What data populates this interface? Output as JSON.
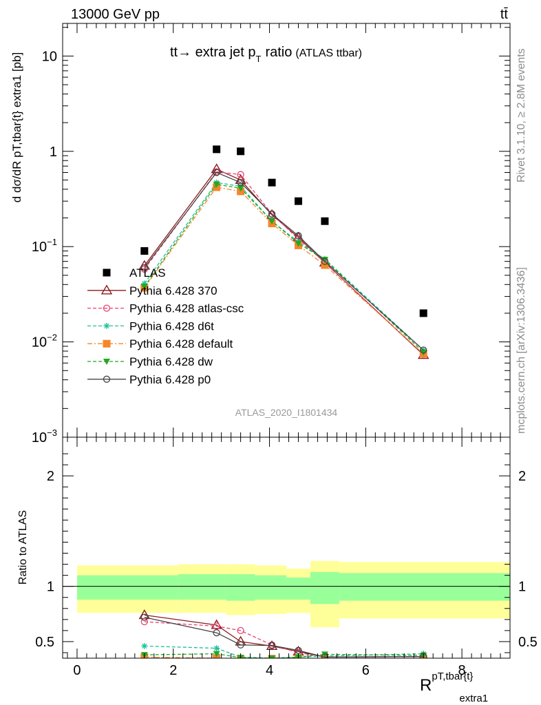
{
  "header": {
    "left": "13000 GeV pp",
    "right": "tt̄"
  },
  "side_labels": {
    "rivet": "Rivet 3.1.10, ≥ 2.8M events",
    "mcplots": "mcplots.cern.ch [arXiv:1306.3436]"
  },
  "analysis_id": "ATLAS_2020_I1801434",
  "chart_data": [
    {
      "type": "scatter",
      "panel": "main",
      "title_main": "tt→ extra jet p",
      "title_sub": "T",
      "title_tail": "ratio",
      "title_note": "(ATLAS ttbar)",
      "ylabel": "d dσ/dR pT,tbar{t} extra1 [pb]",
      "yscale": "log",
      "ylim": [
        0.001,
        22
      ],
      "xlim": [
        -0.3,
        9.0
      ],
      "y_ticks": [
        {
          "value": 10,
          "base": "10",
          "exp": ""
        },
        {
          "value": 1,
          "base": "1",
          "exp": ""
        },
        {
          "value": 0.1,
          "base": "10",
          "exp": "−1"
        },
        {
          "value": 0.01,
          "base": "10",
          "exp": "−2"
        },
        {
          "value": 0.001,
          "base": "10",
          "exp": "−3"
        }
      ],
      "legend_position": "lower-left",
      "series": [
        {
          "name": "ATLAS",
          "color": "#000000",
          "marker": "square-filled",
          "dash": "none",
          "x": [
            1.4,
            2.9,
            3.4,
            4.05,
            4.6,
            5.15,
            7.2
          ],
          "y": [
            0.09,
            1.05,
            1.0,
            0.47,
            0.3,
            0.185,
            0.02
          ]
        },
        {
          "name": "Pythia 6.428 370",
          "color": "#8b1a1a",
          "marker": "triangle-open",
          "dash": "solid",
          "x": [
            1.4,
            2.9,
            3.4,
            4.05,
            4.6,
            5.15,
            7.2
          ],
          "y": [
            0.063,
            0.65,
            0.5,
            0.215,
            0.125,
            0.068,
            0.0073
          ]
        },
        {
          "name": "Pythia 6.428 atlas-csc",
          "color": "#e8416f",
          "marker": "circle-open",
          "dash": "dashed",
          "x": [
            1.4,
            2.9,
            3.4,
            4.05,
            4.6,
            5.15,
            7.2
          ],
          "y": [
            0.058,
            0.61,
            0.57,
            0.22,
            0.12,
            0.068,
            0.0074
          ]
        },
        {
          "name": "Pythia 6.428 d6t",
          "color": "#1fbf9a",
          "marker": "star",
          "dash": "dashed",
          "x": [
            1.4,
            2.9,
            3.4,
            4.05,
            4.6,
            5.15,
            7.2
          ],
          "y": [
            0.041,
            0.47,
            0.43,
            0.185,
            0.112,
            0.074,
            0.0082
          ]
        },
        {
          "name": "Pythia 6.428 default",
          "color": "#f5862a",
          "marker": "square-filled",
          "dash": "dashdot",
          "x": [
            1.4,
            2.9,
            3.4,
            4.05,
            4.6,
            5.15,
            7.2
          ],
          "y": [
            0.037,
            0.42,
            0.38,
            0.175,
            0.103,
            0.064,
            0.0075
          ]
        },
        {
          "name": "Pythia 6.428 dw",
          "color": "#22a822",
          "marker": "triangle-down-filled",
          "dash": "dashed",
          "x": [
            1.4,
            2.9,
            3.4,
            4.05,
            4.6,
            5.15,
            7.2
          ],
          "y": [
            0.038,
            0.45,
            0.41,
            0.185,
            0.108,
            0.073,
            0.0078
          ]
        },
        {
          "name": "Pythia 6.428 p0",
          "color": "#444444",
          "marker": "circle-open",
          "dash": "solid",
          "x": [
            1.4,
            2.9,
            3.4,
            4.05,
            4.6,
            5.15,
            7.2
          ],
          "y": [
            0.06,
            0.6,
            0.47,
            0.22,
            0.13,
            0.07,
            0.0082
          ]
        }
      ]
    },
    {
      "type": "scatter",
      "panel": "ratio",
      "ylabel": "Ratio to ATLAS",
      "xlabel_main": "R",
      "xlabel_sup": "pT,tbar{t}",
      "xlabel_sub": "extra1",
      "xlim": [
        -0.3,
        9.0
      ],
      "ylim": [
        0.35,
        2.35
      ],
      "x_ticks": [
        0,
        2,
        4,
        6,
        8
      ],
      "y_ticks": [
        {
          "value": 0.5,
          "label": "0.5"
        },
        {
          "value": 1,
          "label": "1"
        },
        {
          "value": 2,
          "label": "2"
        }
      ],
      "uncertainty_bands": [
        {
          "x0": 0.0,
          "x1": 2.1,
          "yellow": [
            0.76,
            1.19
          ],
          "green": [
            0.88,
            1.1
          ]
        },
        {
          "x0": 2.1,
          "x1": 3.1,
          "yellow": [
            0.76,
            1.2
          ],
          "green": [
            0.88,
            1.11
          ]
        },
        {
          "x0": 3.1,
          "x1": 3.7,
          "yellow": [
            0.74,
            1.2
          ],
          "green": [
            0.87,
            1.11
          ]
        },
        {
          "x0": 3.7,
          "x1": 4.35,
          "yellow": [
            0.75,
            1.19
          ],
          "green": [
            0.88,
            1.1
          ]
        },
        {
          "x0": 4.35,
          "x1": 4.85,
          "yellow": [
            0.76,
            1.16
          ],
          "green": [
            0.88,
            1.08
          ]
        },
        {
          "x0": 4.85,
          "x1": 5.45,
          "yellow": [
            0.63,
            1.23
          ],
          "green": [
            0.84,
            1.13
          ]
        },
        {
          "x0": 5.45,
          "x1": 9.0,
          "yellow": [
            0.71,
            1.22
          ],
          "green": [
            0.87,
            1.12
          ]
        }
      ],
      "series": [
        {
          "name": "Pythia 6.428 370",
          "color": "#8b1a1a",
          "marker": "triangle-open",
          "dash": "solid",
          "x": [
            1.4,
            2.9,
            3.4,
            4.05,
            4.6,
            5.15,
            7.2
          ],
          "y": [
            0.74,
            0.65,
            0.5,
            0.46,
            0.41,
            0.36,
            0.365
          ]
        },
        {
          "name": "Pythia 6.428 atlas-csc",
          "color": "#e8416f",
          "marker": "circle-open",
          "dash": "dashed",
          "x": [
            1.4,
            2.9,
            3.4,
            4.05,
            4.6,
            5.15,
            7.2
          ],
          "y": [
            0.68,
            0.64,
            0.6,
            0.47,
            0.4,
            0.36,
            0.365
          ]
        },
        {
          "name": "Pythia 6.428 d6t",
          "color": "#1fbf9a",
          "marker": "star",
          "dash": "dashed",
          "x": [
            1.4,
            2.9,
            3.4,
            4.05,
            4.6,
            5.15,
            7.2
          ],
          "y": [
            0.46,
            0.44,
            0.36,
            0.35,
            0.36,
            0.37,
            0.39
          ]
        },
        {
          "name": "Pythia 6.428 default",
          "color": "#f5862a",
          "marker": "square-filled",
          "dash": "dashdot",
          "x": [
            1.4,
            2.9,
            3.4,
            4.05,
            4.6,
            5.15,
            7.2
          ],
          "y": [
            0.36,
            0.35,
            0.345,
            0.345,
            0.345,
            0.345,
            0.345
          ]
        },
        {
          "name": "Pythia 6.428 dw",
          "color": "#22a822",
          "marker": "triangle-down-filled",
          "dash": "dashed",
          "x": [
            1.4,
            2.9,
            3.4,
            4.05,
            4.6,
            5.15,
            7.2
          ],
          "y": [
            0.38,
            0.39,
            0.355,
            0.35,
            0.36,
            0.385,
            0.375
          ]
        },
        {
          "name": "Pythia 6.428 p0",
          "color": "#444444",
          "marker": "circle-open",
          "dash": "solid",
          "x": [
            1.4,
            2.9,
            3.4,
            4.05,
            4.6,
            5.15,
            7.2
          ],
          "y": [
            0.72,
            0.58,
            0.47,
            0.465,
            0.42,
            0.36,
            0.365
          ]
        }
      ]
    }
  ]
}
